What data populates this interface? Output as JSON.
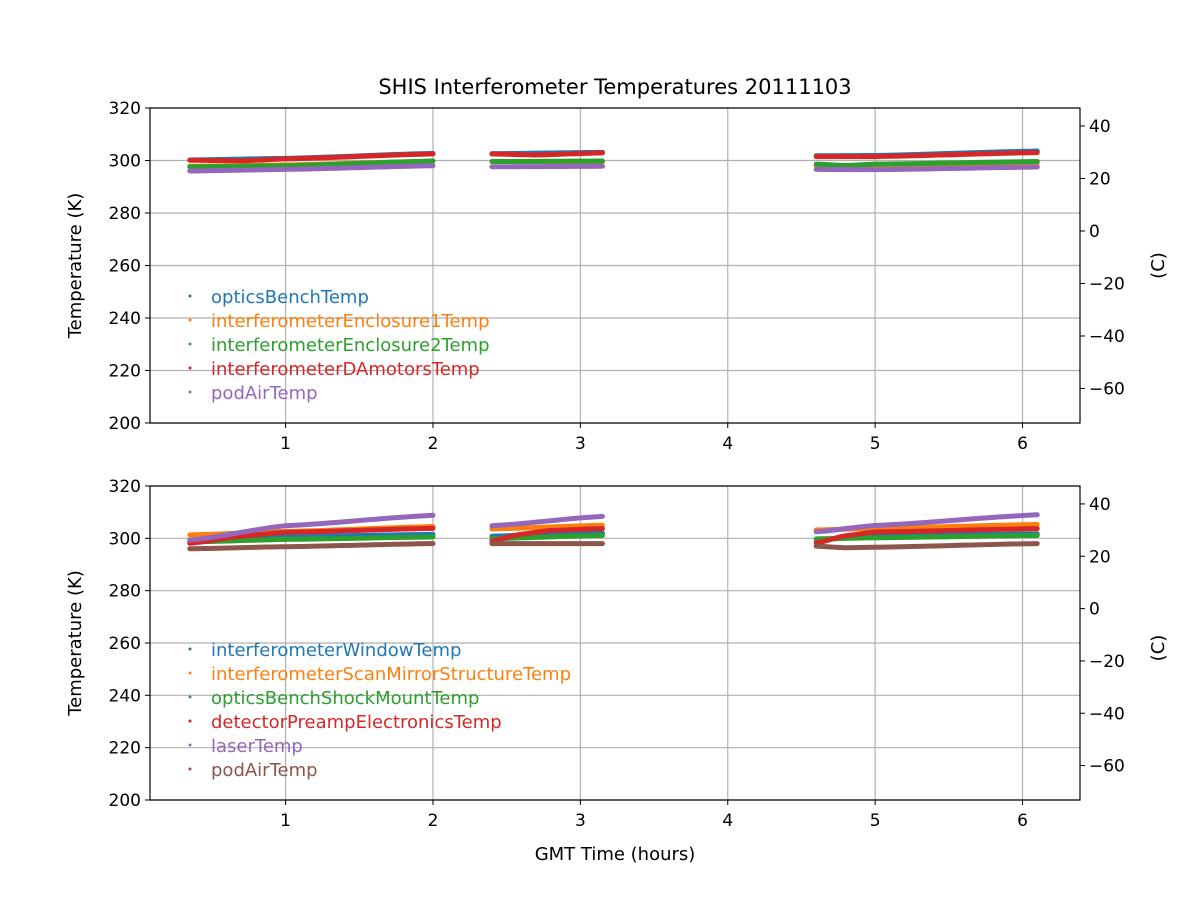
{
  "chart_data": {
    "title": "SHIS Interferometer Temperatures 20111103",
    "xlabel": "GMT Time (hours)",
    "type": "line",
    "panels": [
      {
        "ylabel": "Temperature (K)",
        "ylabel_right": "(C)",
        "xlim": [
          0.08,
          6.39
        ],
        "ylim": [
          200,
          320
        ],
        "xticks": [
          1,
          2,
          3,
          4,
          5,
          6
        ],
        "yticks": [
          200,
          220,
          240,
          260,
          280,
          300,
          320
        ],
        "yticks_right_c": [
          40,
          20,
          0,
          -20,
          -40,
          -60
        ],
        "grid": true,
        "legend_position": "center-left",
        "series": [
          {
            "name": "opticsBenchTemp",
            "color": "#1f77b4",
            "segments": [
              [
                [
                  0.35,
                  300.2
                ],
                [
                  1.0,
                  300.8
                ],
                [
                  2.0,
                  302.7
                ]
              ],
              [
                [
                  2.4,
                  302.6
                ],
                [
                  3.15,
                  303.1
                ]
              ],
              [
                [
                  4.6,
                  301.8
                ],
                [
                  5.0,
                  301.9
                ],
                [
                  6.1,
                  303.6
                ]
              ]
            ]
          },
          {
            "name": "interferometerEnclosure1Temp",
            "color": "#ff7f0e",
            "segments": [
              [
                [
                  0.35,
                  297.8
                ],
                [
                  1.0,
                  298.3
                ],
                [
                  2.0,
                  299.7
                ]
              ],
              [
                [
                  2.4,
                  299.6
                ],
                [
                  3.15,
                  299.6
                ]
              ],
              [
                [
                  4.6,
                  297.9
                ],
                [
                  5.0,
                  298.2
                ],
                [
                  6.1,
                  299.0
                ]
              ]
            ]
          },
          {
            "name": "interferometerEnclosure2Temp",
            "color": "#2ca02c",
            "segments": [
              [
                [
                  0.35,
                  297.6
                ],
                [
                  1.0,
                  298.0
                ],
                [
                  2.0,
                  299.8
                ]
              ],
              [
                [
                  2.4,
                  299.6
                ],
                [
                  3.15,
                  299.8
                ]
              ],
              [
                [
                  4.6,
                  298.6
                ],
                [
                  4.8,
                  298.1
                ],
                [
                  5.0,
                  298.6
                ],
                [
                  6.1,
                  299.6
                ]
              ]
            ]
          },
          {
            "name": "interferometerDAmotorsTemp",
            "color": "#d62728",
            "segments": [
              [
                [
                  0.35,
                  300.1
                ],
                [
                  0.7,
                  299.9
                ],
                [
                  1.0,
                  300.6
                ],
                [
                  2.0,
                  302.5
                ]
              ],
              [
                [
                  2.4,
                  302.5
                ],
                [
                  2.7,
                  302.1
                ],
                [
                  3.15,
                  302.9
                ]
              ],
              [
                [
                  4.6,
                  301.5
                ],
                [
                  5.0,
                  301.5
                ],
                [
                  6.1,
                  303.0
                ]
              ]
            ]
          },
          {
            "name": "podAirTemp",
            "color": "#9467bd",
            "segments": [
              [
                [
                  0.35,
                  296.0
                ],
                [
                  1.0,
                  296.6
                ],
                [
                  2.0,
                  298.0
                ]
              ],
              [
                [
                  2.4,
                  297.6
                ],
                [
                  3.15,
                  297.8
                ]
              ],
              [
                [
                  4.6,
                  296.6
                ],
                [
                  5.0,
                  296.5
                ],
                [
                  6.1,
                  297.5
                ]
              ]
            ]
          }
        ]
      },
      {
        "ylabel": "Temperature (K)",
        "ylabel_right": "(C)",
        "xlim": [
          0.08,
          6.39
        ],
        "ylim": [
          200,
          320
        ],
        "xticks": [
          1,
          2,
          3,
          4,
          5,
          6
        ],
        "yticks": [
          200,
          220,
          240,
          260,
          280,
          300,
          320
        ],
        "yticks_right_c": [
          40,
          20,
          0,
          -20,
          -40,
          -60
        ],
        "grid": true,
        "legend_position": "center-left",
        "series": [
          {
            "name": "interferometerWindowTemp",
            "color": "#1f77b4",
            "segments": [
              [
                [
                  0.35,
                  299.0
                ],
                [
                  1.0,
                  300.7
                ],
                [
                  2.0,
                  301.5
                ]
              ],
              [
                [
                  2.4,
                  300.8
                ],
                [
                  2.8,
                  301.7
                ],
                [
                  3.15,
                  302.0
                ]
              ],
              [
                [
                  4.6,
                  299.4
                ],
                [
                  5.0,
                  300.9
                ],
                [
                  6.1,
                  301.7
                ]
              ]
            ]
          },
          {
            "name": "interferometerScanMirrorStructureTemp",
            "color": "#ff7f0e",
            "segments": [
              [
                [
                  0.35,
                  301.3
                ],
                [
                  1.0,
                  302.6
                ],
                [
                  2.0,
                  304.5
                ]
              ],
              [
                [
                  2.4,
                  303.6
                ],
                [
                  3.15,
                  305.0
                ]
              ],
              [
                [
                  4.6,
                  303.2
                ],
                [
                  5.0,
                  303.8
                ],
                [
                  6.1,
                  305.3
                ]
              ]
            ]
          },
          {
            "name": "opticsBenchShockMountTemp",
            "color": "#2ca02c",
            "segments": [
              [
                [
                  0.35,
                  298.6
                ],
                [
                  1.0,
                  299.6
                ],
                [
                  2.0,
                  300.5
                ]
              ],
              [
                [
                  2.4,
                  299.9
                ],
                [
                  3.15,
                  301.1
                ]
              ],
              [
                [
                  4.6,
                  299.8
                ],
                [
                  5.0,
                  300.2
                ],
                [
                  6.1,
                  301.1
                ]
              ]
            ]
          },
          {
            "name": "detectorPreampElectronicsTemp",
            "color": "#d62728",
            "segments": [
              [
                [
                  0.35,
                  298.1
                ],
                [
                  0.7,
                  300.8
                ],
                [
                  1.0,
                  302.3
                ],
                [
                  2.0,
                  303.8
                ]
              ],
              [
                [
                  2.4,
                  299.0
                ],
                [
                  2.6,
                  301.6
                ],
                [
                  2.8,
                  303.0
                ],
                [
                  3.15,
                  303.7
                ]
              ],
              [
                [
                  4.6,
                  298.2
                ],
                [
                  4.8,
                  301.0
                ],
                [
                  5.0,
                  302.4
                ],
                [
                  6.1,
                  303.7
                ]
              ]
            ]
          },
          {
            "name": "laserTemp",
            "color": "#9467bd",
            "segments": [
              [
                [
                  0.35,
                  299.3
                ],
                [
                  1.0,
                  304.8
                ],
                [
                  2.0,
                  308.8
                ]
              ],
              [
                [
                  2.4,
                  304.8
                ],
                [
                  3.15,
                  308.4
                ]
              ],
              [
                [
                  4.6,
                  302.5
                ],
                [
                  5.0,
                  304.9
                ],
                [
                  6.1,
                  309.0
                ]
              ]
            ]
          },
          {
            "name": "podAirTemp",
            "color": "#8c564b",
            "segments": [
              [
                [
                  0.35,
                  296.0
                ],
                [
                  1.0,
                  296.8
                ],
                [
                  2.0,
                  298.0
                ]
              ],
              [
                [
                  2.4,
                  298.0
                ],
                [
                  3.15,
                  298.0
                ]
              ],
              [
                [
                  4.6,
                  297.0
                ],
                [
                  4.8,
                  296.4
                ],
                [
                  5.0,
                  296.6
                ],
                [
                  6.1,
                  298.0
                ]
              ]
            ]
          }
        ]
      }
    ]
  }
}
